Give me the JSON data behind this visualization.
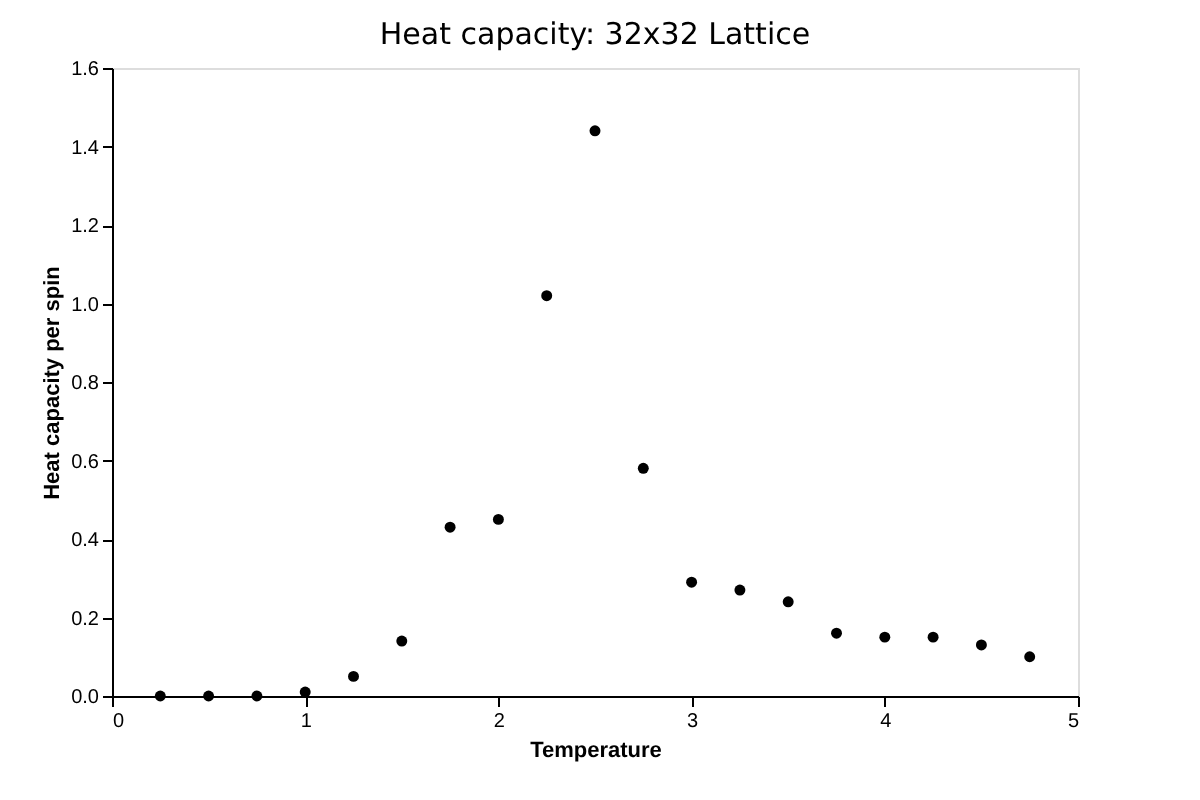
{
  "chart_data": {
    "type": "scatter",
    "title": "Heat capacity: 32x32 Lattice",
    "xlabel": "Temperature",
    "ylabel": "Heat capacity per spin",
    "x": [
      0.25,
      0.5,
      0.75,
      1.0,
      1.25,
      1.5,
      1.75,
      2.0,
      2.25,
      2.5,
      2.75,
      3.0,
      3.25,
      3.5,
      3.75,
      4.0,
      4.25,
      4.5,
      4.75
    ],
    "series": [
      {
        "color": "#000000",
        "values": [
          0,
          0,
          0,
          0.01,
          0.05,
          0.14,
          0.43,
          0.45,
          1.02,
          1.44,
          0.58,
          0.29,
          0.27,
          0.24,
          0.16,
          0.15,
          0.15,
          0.13,
          0.1
        ]
      }
    ],
    "xlim": [
      0,
      5
    ],
    "xticks": [
      0,
      1,
      2,
      3,
      4,
      5
    ],
    "ylim": [
      0,
      1.6
    ],
    "yticks": [
      {
        "value": 0,
        "label": "0.0"
      },
      0.2,
      0.4,
      0.6,
      0.8,
      {
        "value": 1,
        "label": "1.0"
      },
      1.2,
      1.4,
      1.6
    ],
    "marker": "circle",
    "grid": false
  }
}
